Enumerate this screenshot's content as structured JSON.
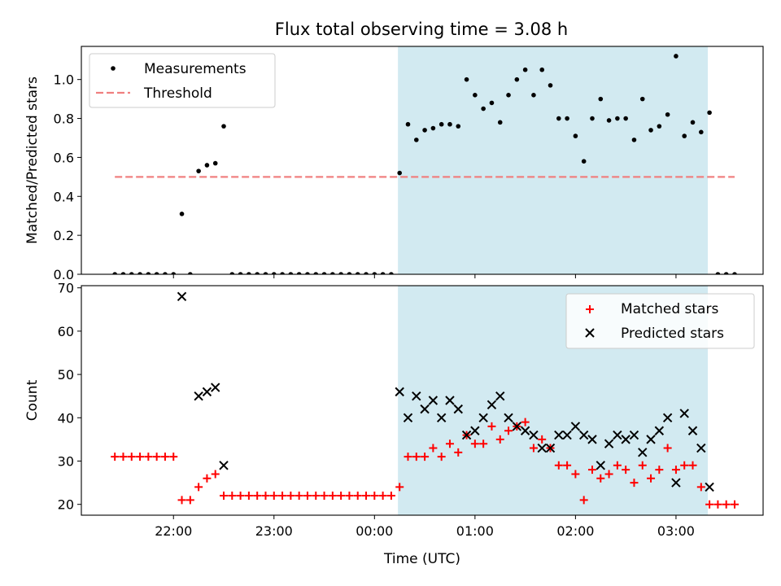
{
  "title": "Flux total observing time = 3.08 h",
  "colors": {
    "shade": "#add8e6",
    "measurement": "#000000",
    "threshold": "#f08080",
    "matched": "#ff0000",
    "predicted": "#000000"
  },
  "chart_data": [
    {
      "type": "scatter",
      "panel": "top",
      "ylabel": "Matched/Predicted stars",
      "ylim": [
        0,
        1.17
      ],
      "yticks": [
        "0.0",
        "0.2",
        "0.4",
        "0.6",
        "0.8",
        "1.0"
      ],
      "legend": {
        "placement": "top-left",
        "entries": [
          "Measurements",
          "Threshold"
        ]
      },
      "shaded_span": {
        "x_start": "00:14",
        "x_end": "03:19"
      },
      "threshold": {
        "name": "Threshold",
        "value": 0.5,
        "x_start": "21:25",
        "x_end": "03:35"
      },
      "series": [
        {
          "name": "Measurements",
          "points": [
            [
              "21:25",
              0
            ],
            [
              "21:30",
              0
            ],
            [
              "21:35",
              0
            ],
            [
              "21:40",
              0
            ],
            [
              "21:45",
              0
            ],
            [
              "21:50",
              0
            ],
            [
              "21:55",
              0
            ],
            [
              "22:00",
              0
            ],
            [
              "22:05",
              0.31
            ],
            [
              "22:10",
              0
            ],
            [
              "22:15",
              0.53
            ],
            [
              "22:20",
              0.56
            ],
            [
              "22:25",
              0.57
            ],
            [
              "22:30",
              0.76
            ],
            [
              "22:35",
              0
            ],
            [
              "22:40",
              0
            ],
            [
              "22:45",
              0
            ],
            [
              "22:50",
              0
            ],
            [
              "22:55",
              0
            ],
            [
              "23:00",
              0
            ],
            [
              "23:05",
              0
            ],
            [
              "23:10",
              0
            ],
            [
              "23:15",
              0
            ],
            [
              "23:20",
              0
            ],
            [
              "23:25",
              0
            ],
            [
              "23:30",
              0
            ],
            [
              "23:35",
              0
            ],
            [
              "23:40",
              0
            ],
            [
              "23:45",
              0
            ],
            [
              "23:50",
              0
            ],
            [
              "23:55",
              0
            ],
            [
              "00:00",
              0
            ],
            [
              "00:05",
              0
            ],
            [
              "00:10",
              0
            ],
            [
              "00:15",
              0.52
            ],
            [
              "00:20",
              0.77
            ],
            [
              "00:25",
              0.69
            ],
            [
              "00:30",
              0.74
            ],
            [
              "00:35",
              0.75
            ],
            [
              "00:40",
              0.77
            ],
            [
              "00:45",
              0.77
            ],
            [
              "00:50",
              0.76
            ],
            [
              "00:55",
              1.0
            ],
            [
              "01:00",
              0.92
            ],
            [
              "01:05",
              0.85
            ],
            [
              "01:10",
              0.88
            ],
            [
              "01:15",
              0.78
            ],
            [
              "01:20",
              0.92
            ],
            [
              "01:25",
              1.0
            ],
            [
              "01:30",
              1.05
            ],
            [
              "01:35",
              0.92
            ],
            [
              "01:40",
              1.05
            ],
            [
              "01:45",
              0.97
            ],
            [
              "01:50",
              0.8
            ],
            [
              "01:55",
              0.8
            ],
            [
              "02:00",
              0.71
            ],
            [
              "02:05",
              0.58
            ],
            [
              "02:10",
              0.8
            ],
            [
              "02:15",
              0.9
            ],
            [
              "02:20",
              0.79
            ],
            [
              "02:25",
              0.8
            ],
            [
              "02:30",
              0.8
            ],
            [
              "02:35",
              0.69
            ],
            [
              "02:40",
              0.9
            ],
            [
              "02:45",
              0.74
            ],
            [
              "02:50",
              0.76
            ],
            [
              "02:55",
              0.82
            ],
            [
              "03:00",
              1.12
            ],
            [
              "03:05",
              0.71
            ],
            [
              "03:10",
              0.78
            ],
            [
              "03:15",
              0.73
            ],
            [
              "03:20",
              0.83
            ],
            [
              "03:25",
              0
            ],
            [
              "03:30",
              0
            ],
            [
              "03:35",
              0
            ]
          ]
        }
      ]
    },
    {
      "type": "scatter",
      "panel": "bottom",
      "xlabel": "Time (UTC)",
      "ylabel": "Count",
      "ylim": [
        17.5,
        70.5
      ],
      "yticks": [
        "20",
        "30",
        "40",
        "50",
        "60",
        "70"
      ],
      "xticks": [
        "22:00",
        "23:00",
        "00:00",
        "01:00",
        "02:00",
        "03:00"
      ],
      "legend": {
        "placement": "top-right",
        "entries": [
          "Matched stars",
          "Predicted stars"
        ]
      },
      "shaded_span": {
        "x_start": "00:14",
        "x_end": "03:19"
      },
      "series": [
        {
          "name": "Matched stars",
          "marker": "plus",
          "points": [
            [
              "21:25",
              31
            ],
            [
              "21:30",
              31
            ],
            [
              "21:35",
              31
            ],
            [
              "21:40",
              31
            ],
            [
              "21:45",
              31
            ],
            [
              "21:50",
              31
            ],
            [
              "21:55",
              31
            ],
            [
              "22:00",
              31
            ],
            [
              "22:05",
              21
            ],
            [
              "22:10",
              21
            ],
            [
              "22:15",
              24
            ],
            [
              "22:20",
              26
            ],
            [
              "22:25",
              27
            ],
            [
              "22:30",
              22
            ],
            [
              "22:35",
              22
            ],
            [
              "22:40",
              22
            ],
            [
              "22:45",
              22
            ],
            [
              "22:50",
              22
            ],
            [
              "22:55",
              22
            ],
            [
              "23:00",
              22
            ],
            [
              "23:05",
              22
            ],
            [
              "23:10",
              22
            ],
            [
              "23:15",
              22
            ],
            [
              "23:20",
              22
            ],
            [
              "23:25",
              22
            ],
            [
              "23:30",
              22
            ],
            [
              "23:35",
              22
            ],
            [
              "23:40",
              22
            ],
            [
              "23:45",
              22
            ],
            [
              "23:50",
              22
            ],
            [
              "23:55",
              22
            ],
            [
              "00:00",
              22
            ],
            [
              "00:05",
              22
            ],
            [
              "00:10",
              22
            ],
            [
              "00:15",
              24
            ],
            [
              "00:20",
              31
            ],
            [
              "00:25",
              31
            ],
            [
              "00:30",
              31
            ],
            [
              "00:35",
              33
            ],
            [
              "00:40",
              31
            ],
            [
              "00:45",
              34
            ],
            [
              "00:50",
              32
            ],
            [
              "00:55",
              36
            ],
            [
              "01:00",
              34
            ],
            [
              "01:05",
              34
            ],
            [
              "01:10",
              38
            ],
            [
              "01:15",
              35
            ],
            [
              "01:20",
              37
            ],
            [
              "01:25",
              38
            ],
            [
              "01:30",
              39
            ],
            [
              "01:35",
              33
            ],
            [
              "01:40",
              35
            ],
            [
              "01:45",
              33
            ],
            [
              "01:50",
              29
            ],
            [
              "01:55",
              29
            ],
            [
              "02:00",
              27
            ],
            [
              "02:05",
              21
            ],
            [
              "02:10",
              28
            ],
            [
              "02:15",
              26
            ],
            [
              "02:20",
              27
            ],
            [
              "02:25",
              29
            ],
            [
              "02:30",
              28
            ],
            [
              "02:35",
              25
            ],
            [
              "02:40",
              29
            ],
            [
              "02:45",
              26
            ],
            [
              "02:50",
              28
            ],
            [
              "02:55",
              33
            ],
            [
              "03:00",
              28
            ],
            [
              "03:05",
              29
            ],
            [
              "03:10",
              29
            ],
            [
              "03:15",
              24
            ],
            [
              "03:20",
              20
            ],
            [
              "03:25",
              20
            ],
            [
              "03:30",
              20
            ],
            [
              "03:35",
              20
            ]
          ]
        },
        {
          "name": "Predicted stars",
          "marker": "x",
          "points": [
            [
              "22:05",
              68
            ],
            [
              "22:15",
              45
            ],
            [
              "22:20",
              46
            ],
            [
              "22:25",
              47
            ],
            [
              "22:30",
              29
            ],
            [
              "00:15",
              46
            ],
            [
              "00:20",
              40
            ],
            [
              "00:25",
              45
            ],
            [
              "00:30",
              42
            ],
            [
              "00:35",
              44
            ],
            [
              "00:40",
              40
            ],
            [
              "00:45",
              44
            ],
            [
              "00:50",
              42
            ],
            [
              "00:55",
              36
            ],
            [
              "01:00",
              37
            ],
            [
              "01:05",
              40
            ],
            [
              "01:10",
              43
            ],
            [
              "01:15",
              45
            ],
            [
              "01:20",
              40
            ],
            [
              "01:25",
              38
            ],
            [
              "01:30",
              37
            ],
            [
              "01:35",
              36
            ],
            [
              "01:40",
              33
            ],
            [
              "01:45",
              33
            ],
            [
              "01:50",
              36
            ],
            [
              "01:55",
              36
            ],
            [
              "02:00",
              38
            ],
            [
              "02:05",
              36
            ],
            [
              "02:10",
              35
            ],
            [
              "02:15",
              29
            ],
            [
              "02:20",
              34
            ],
            [
              "02:25",
              36
            ],
            [
              "02:30",
              35
            ],
            [
              "02:35",
              36
            ],
            [
              "02:40",
              32
            ],
            [
              "02:45",
              35
            ],
            [
              "02:50",
              37
            ],
            [
              "02:55",
              40
            ],
            [
              "03:00",
              25
            ],
            [
              "03:05",
              41
            ],
            [
              "03:10",
              37
            ],
            [
              "03:15",
              33
            ],
            [
              "03:20",
              24
            ]
          ]
        }
      ]
    }
  ]
}
